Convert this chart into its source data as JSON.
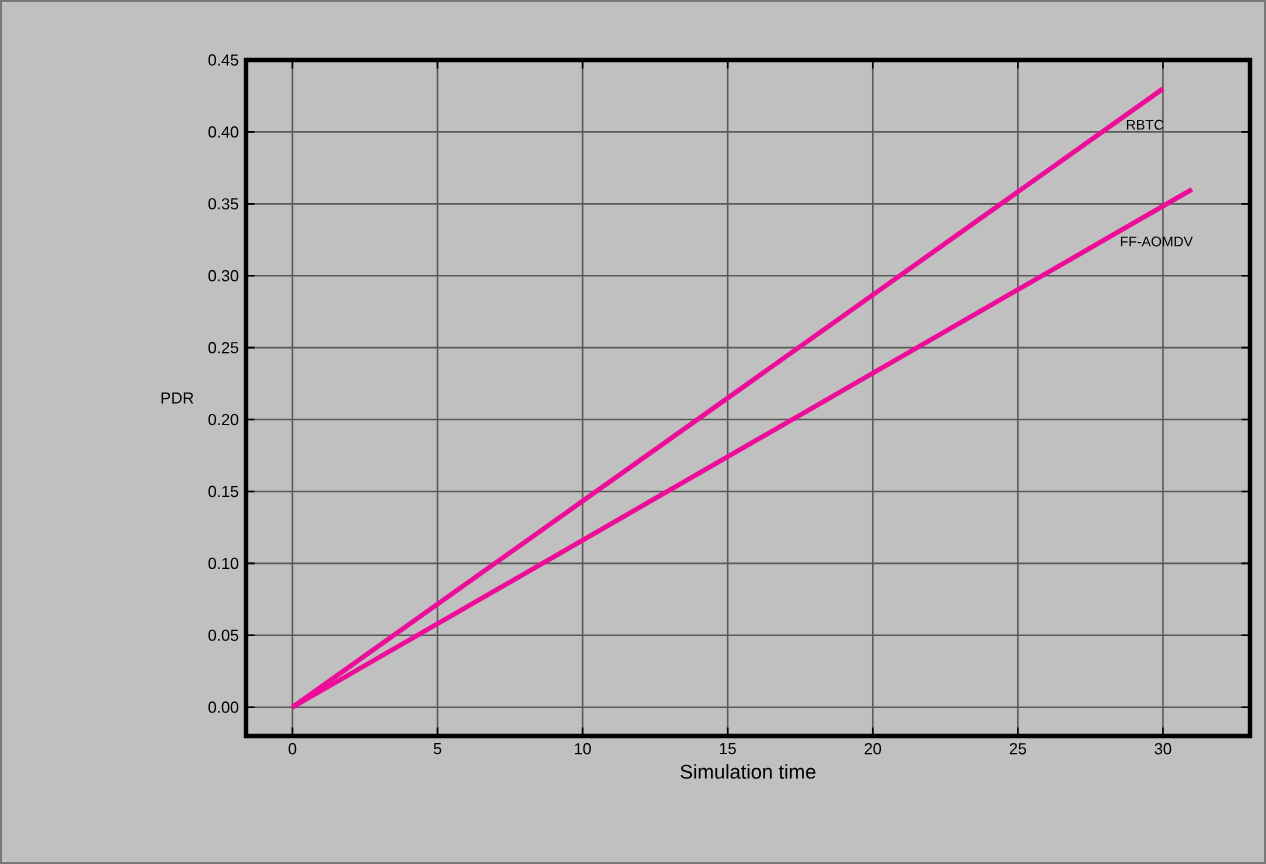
{
  "chart_data": {
    "type": "line",
    "xlabel": "Simulation time",
    "ylabel": "PDR",
    "xlim": [
      -1.6,
      33
    ],
    "ylim": [
      -0.02,
      0.45
    ],
    "xticks": [
      0,
      5,
      10,
      15,
      20,
      25,
      30
    ],
    "yticks": [
      {
        "value": 0,
        "label": "0.00"
      },
      {
        "value": 0.05,
        "label": "0.05"
      },
      {
        "value": 0.1,
        "label": "0.10"
      },
      {
        "value": 0.15,
        "label": "0.15"
      },
      {
        "value": 0.2,
        "label": "0.20"
      },
      {
        "value": 0.25,
        "label": "0.25"
      },
      {
        "value": 0.3,
        "label": "0.30"
      },
      {
        "value": 0.35,
        "label": "0.35"
      },
      {
        "value": 0.4,
        "label": "0.40"
      },
      {
        "value": 0.45,
        "label": "0.45"
      }
    ],
    "grid": true,
    "marker": "none",
    "line_style": "solid",
    "series": [
      {
        "name": "RBTC",
        "color": "#ee0d99",
        "x": [
          0,
          30
        ],
        "values": [
          0,
          0.43
        ]
      },
      {
        "name": "FF-AOMDV",
        "color": "#ee0d99",
        "x": [
          0,
          31
        ],
        "values": [
          0,
          0.36
        ]
      }
    ]
  }
}
